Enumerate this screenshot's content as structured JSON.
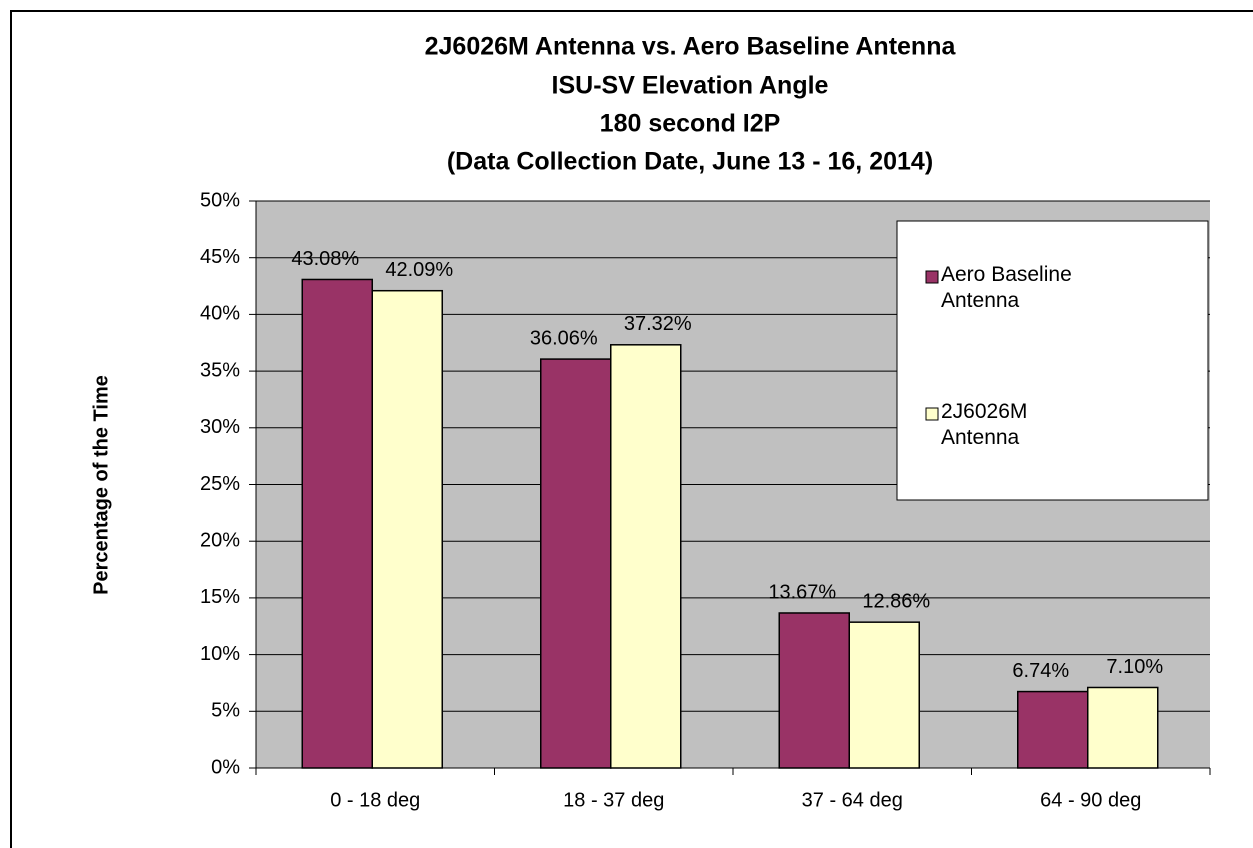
{
  "chart_data": {
    "type": "bar",
    "title": [
      "2J6026M Antenna vs. Aero Baseline Antenna",
      "ISU-SV Elevation Angle",
      "180 second I2P",
      "(Data Collection Date, June 13 - 16, 2014)"
    ],
    "ylabel": "Percentage of the Time",
    "categories": [
      "0 - 18 deg",
      "18 - 37 deg",
      "37 - 64 deg",
      "64 - 90 deg"
    ],
    "series": [
      {
        "name": "Aero Baseline Antenna",
        "color": "#993366",
        "values": [
          43.08,
          36.06,
          13.67,
          6.74
        ],
        "value_labels": [
          "43.08%",
          "36.06%",
          "13.67%",
          "6.74%"
        ]
      },
      {
        "name": "2J6026M Antenna",
        "color": "#ffffcc",
        "values": [
          42.09,
          37.32,
          12.86,
          7.1
        ],
        "value_labels": [
          "42.09%",
          "37.32%",
          "12.86%",
          "7.10%"
        ]
      }
    ],
    "ylim": [
      0,
      50
    ],
    "yticks": [
      {
        "value": 0,
        "label": "0%"
      },
      {
        "value": 5,
        "label": "5%"
      },
      {
        "value": 10,
        "label": "10%"
      },
      {
        "value": 15,
        "label": "15%"
      },
      {
        "value": 20,
        "label": "20%"
      },
      {
        "value": 25,
        "label": "25%"
      },
      {
        "value": 30,
        "label": "30%"
      },
      {
        "value": 35,
        "label": "35%"
      },
      {
        "value": 40,
        "label": "40%"
      },
      {
        "value": 45,
        "label": "45%"
      },
      {
        "value": 50,
        "label": "50%"
      }
    ],
    "grid": true,
    "legend": "upper right",
    "plot_background": "#c0c0c0"
  }
}
